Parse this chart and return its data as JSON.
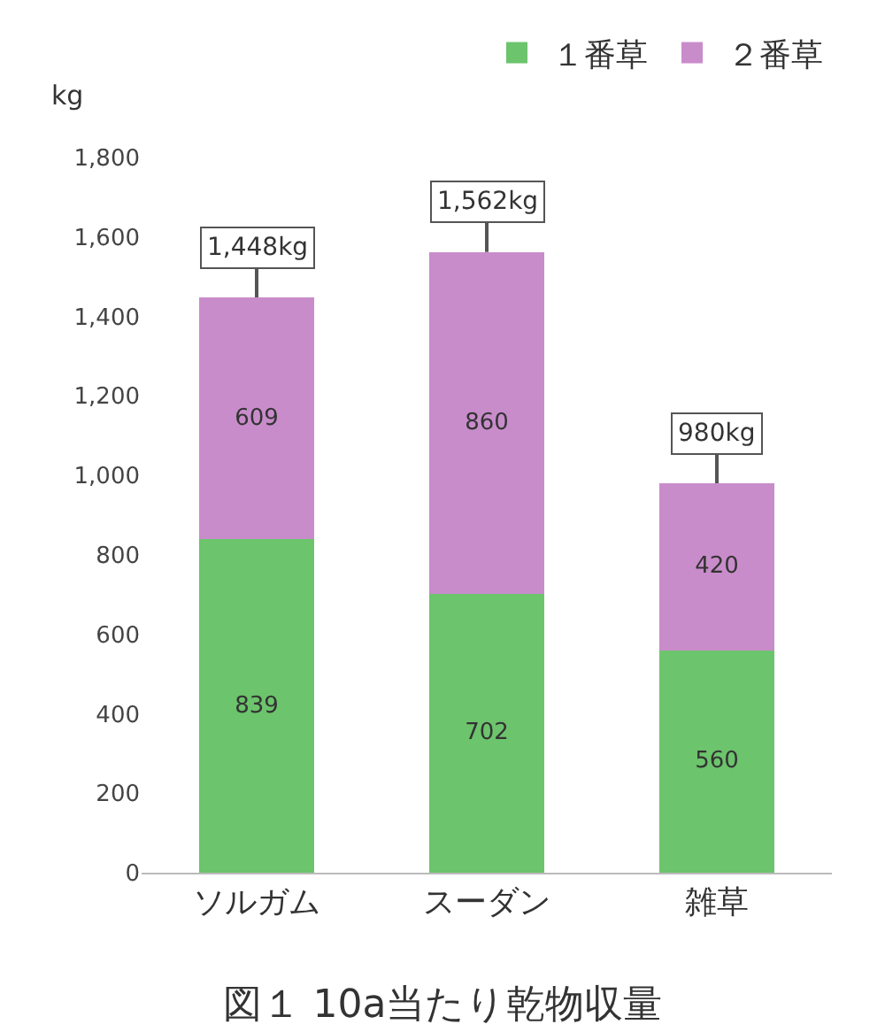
{
  "chart_data": {
    "type": "bar",
    "title": "図１ 10a当たり乾物収量",
    "ylabel": "kg",
    "categories": [
      "ソルガム",
      "スーダン",
      "雑草"
    ],
    "stacked": true,
    "series": [
      {
        "name": "１番草",
        "color": "#6cc46c",
        "values": [
          839,
          702,
          560
        ]
      },
      {
        "name": "２番草",
        "color": "#c98ccb",
        "values": [
          609,
          860,
          420
        ]
      }
    ],
    "ylim": [
      0,
      1800
    ],
    "yticks": [
      0,
      200,
      400,
      600,
      800,
      {
        "value": 1000,
        "label": "1,000"
      },
      {
        "value": 1200,
        "label": "1,200"
      },
      {
        "value": 1400,
        "label": "1,400"
      },
      {
        "value": 1600,
        "label": "1,600"
      },
      {
        "value": 1800,
        "label": "1,800"
      }
    ],
    "grid": false,
    "legend": "top right",
    "data_labels": true,
    "totals": [
      "1,448kg",
      "1,562kg",
      "980kg"
    ]
  }
}
